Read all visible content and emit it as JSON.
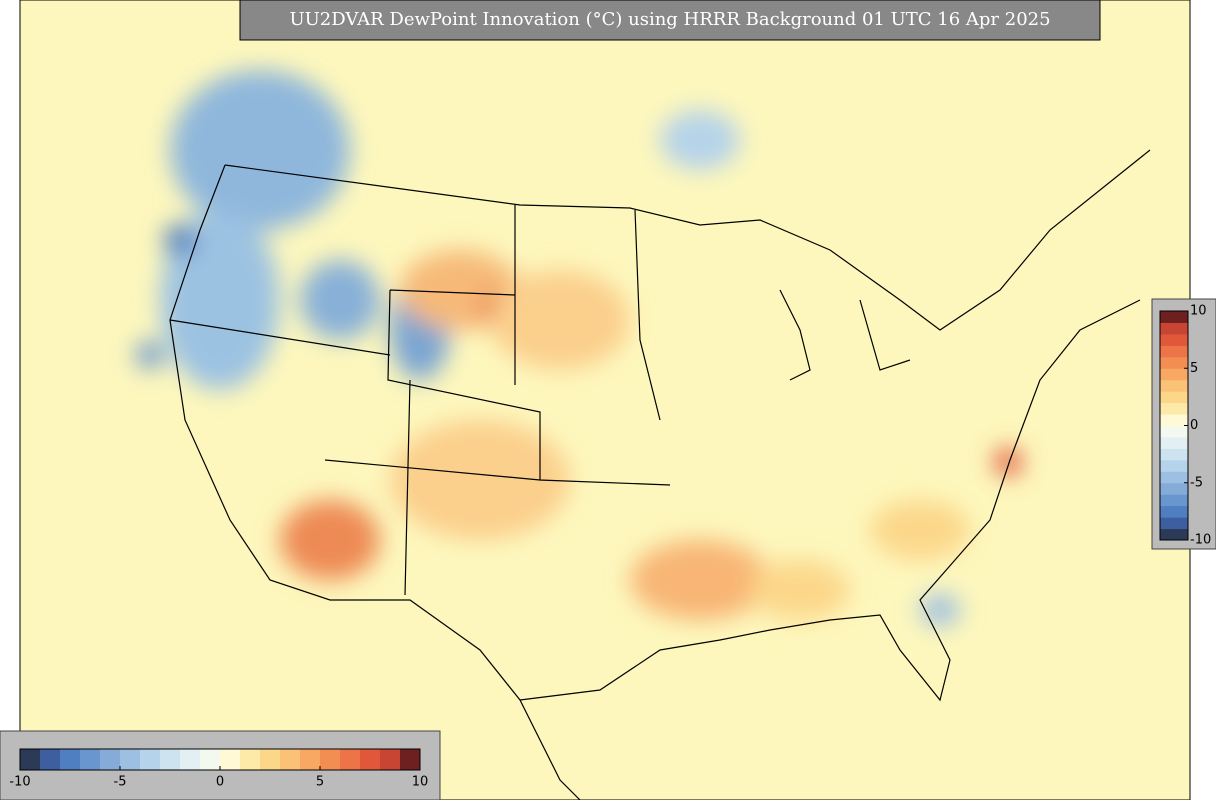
{
  "title": "UU2DVAR DewPoint Innovation (°C) using HRRR Background 01 UTC 16 Apr 2025",
  "colors": [
    "#2b3a57",
    "#3d5fa0",
    "#4f7fc0",
    "#6a96cf",
    "#85acd9",
    "#9dc0e2",
    "#b5d3ea",
    "#cde3f0",
    "#e2f0f3",
    "#f4f9f0",
    "#fff9d6",
    "#fdeaa8",
    "#fcd78a",
    "#fbc176",
    "#f8a862",
    "#f28e52",
    "#ec7446",
    "#e0573a",
    "#c84433",
    "#6e1f1f"
  ],
  "colorbar_vertical": {
    "range": [
      -10,
      10
    ],
    "ticks": [
      10,
      5,
      0,
      -5,
      -10
    ]
  },
  "colorbar_horizontal": {
    "range": [
      -10,
      10
    ],
    "ticks": [
      -10,
      -5,
      0,
      5,
      10
    ]
  }
}
